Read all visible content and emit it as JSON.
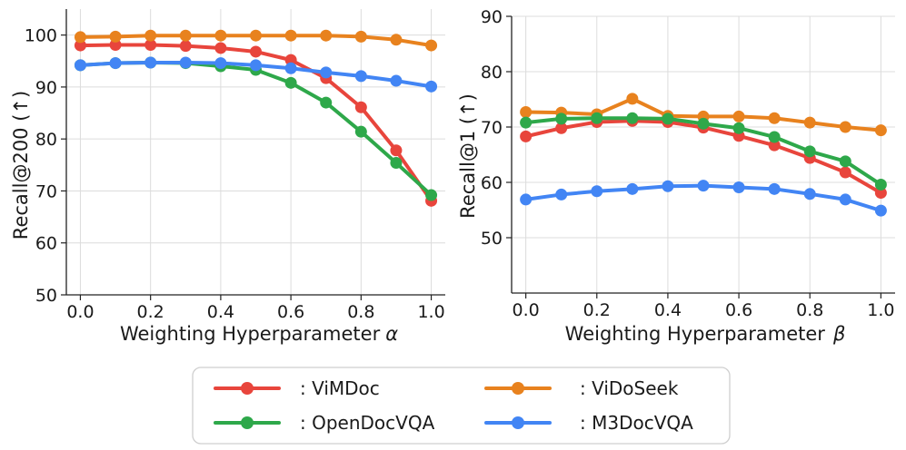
{
  "chart_data": [
    {
      "type": "line",
      "title": "",
      "xlabel": "Weighting Hyperparameter",
      "xlabel_symbol": "α",
      "ylabel": "Recall@200 (↑)",
      "xlim": [
        -0.04,
        1.04
      ],
      "ylim": [
        50,
        105
      ],
      "x": [
        0.0,
        0.1,
        0.2,
        0.3,
        0.4,
        0.5,
        0.6,
        0.7,
        0.8,
        0.9,
        1.0
      ],
      "xticks": [
        "0.0",
        "0.2",
        "0.4",
        "0.6",
        "0.8",
        "1.0"
      ],
      "yticks": [
        "50",
        "60",
        "70",
        "80",
        "90",
        "100"
      ],
      "series": [
        {
          "name": "ViMDoc",
          "color": "#e8453c",
          "values": [
            98.0,
            98.1,
            98.1,
            97.9,
            97.5,
            96.8,
            95.2,
            91.7,
            86.1,
            77.8,
            68.1
          ]
        },
        {
          "name": "ViDoSeek",
          "color": "#e8821e",
          "values": [
            99.6,
            99.7,
            99.9,
            99.9,
            99.9,
            99.9,
            99.9,
            99.9,
            99.7,
            99.1,
            98.0
          ]
        },
        {
          "name": "OpenDocVQA",
          "color": "#2ea84a",
          "values": [
            94.2,
            94.6,
            94.7,
            94.6,
            94.0,
            93.3,
            90.8,
            87.0,
            81.4,
            75.4,
            69.2
          ]
        },
        {
          "name": "M3DocVQA",
          "color": "#4285f4",
          "values": [
            94.2,
            94.6,
            94.7,
            94.7,
            94.6,
            94.2,
            93.6,
            92.8,
            92.1,
            91.2,
            90.1
          ]
        }
      ]
    },
    {
      "type": "line",
      "title": "",
      "xlabel": "Weighting Hyperparameter",
      "xlabel_symbol": "β",
      "ylabel": "Recall@1 (↑)",
      "xlim": [
        -0.04,
        1.04
      ],
      "ylim": [
        40,
        90
      ],
      "x": [
        0.0,
        0.1,
        0.2,
        0.3,
        0.4,
        0.5,
        0.6,
        0.7,
        0.8,
        0.9,
        1.0
      ],
      "xticks": [
        "0.0",
        "0.2",
        "0.4",
        "0.6",
        "0.8",
        "1.0"
      ],
      "yticks": [
        "50",
        "60",
        "70",
        "80",
        "90"
      ],
      "series": [
        {
          "name": "ViMDoc",
          "color": "#e8453c",
          "values": [
            68.3,
            69.8,
            70.9,
            71.1,
            70.9,
            69.9,
            68.4,
            66.7,
            64.4,
            61.8,
            58.1
          ]
        },
        {
          "name": "ViDoSeek",
          "color": "#e8821e",
          "values": [
            72.7,
            72.6,
            72.3,
            75.1,
            72.0,
            71.9,
            71.9,
            71.6,
            70.8,
            70.0,
            69.4
          ]
        },
        {
          "name": "OpenDocVQA",
          "color": "#2ea84a",
          "values": [
            70.8,
            71.5,
            71.6,
            71.6,
            71.5,
            70.6,
            69.8,
            68.2,
            65.6,
            63.8,
            59.6
          ]
        },
        {
          "name": "M3DocVQA",
          "color": "#4285f4",
          "values": [
            56.9,
            57.8,
            58.4,
            58.8,
            59.3,
            59.4,
            59.1,
            58.8,
            57.9,
            56.9,
            54.9
          ]
        }
      ]
    }
  ],
  "legend": {
    "items": [
      {
        "label": ": ViMDoc",
        "color": "#e8453c"
      },
      {
        "label": ": ViDoSeek",
        "color": "#e8821e"
      },
      {
        "label": ": OpenDocVQA",
        "color": "#2ea84a"
      },
      {
        "label": ": M3DocVQA",
        "color": "#4285f4"
      }
    ]
  }
}
